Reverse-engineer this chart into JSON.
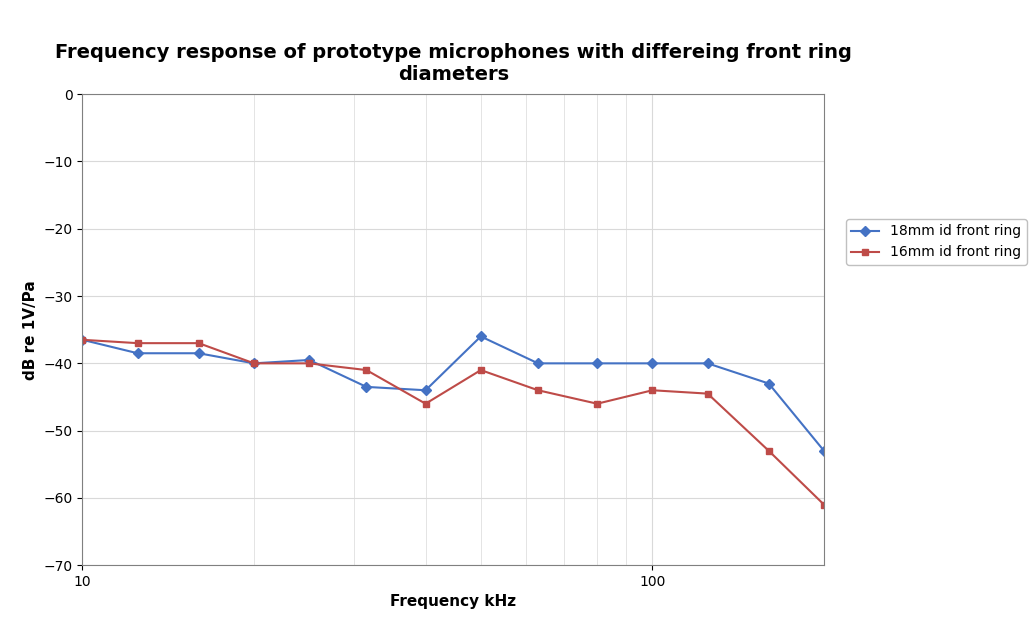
{
  "title": "Frequency response of prototype microphones with differeing front ring\ndiameters",
  "xlabel": "Frequency kHz",
  "ylabel": "dB re 1V/Pa",
  "xlim": [
    10,
    200
  ],
  "ylim": [
    -70,
    0
  ],
  "yticks": [
    0,
    -10,
    -20,
    -30,
    -40,
    -50,
    -60,
    -70
  ],
  "series": [
    {
      "label": "18mm id front ring",
      "color": "#4472C4",
      "marker": "D",
      "x": [
        10,
        12.5,
        16,
        20,
        25,
        31.5,
        40,
        50,
        63,
        80,
        100,
        125,
        160,
        200
      ],
      "y": [
        -36.5,
        -38.5,
        -38.5,
        -40.0,
        -39.5,
        -43.5,
        -44.0,
        -36.0,
        -40.0,
        -40.0,
        -40.0,
        -40.0,
        -43.0,
        -53.0
      ]
    },
    {
      "label": "16mm id front ring",
      "color": "#BE4B48",
      "marker": "s",
      "x": [
        10,
        12.5,
        16,
        20,
        25,
        31.5,
        40,
        50,
        63,
        80,
        100,
        125,
        160,
        200
      ],
      "y": [
        -36.5,
        -37.0,
        -37.0,
        -40.0,
        -40.0,
        -41.0,
        -46.0,
        -41.0,
        -44.0,
        -46.0,
        -44.0,
        -44.5,
        -53.0,
        -61.0
      ]
    }
  ],
  "bg_color": "#FFFFFF",
  "plot_bg_color": "#FFFFFF",
  "grid_color": "#D9D9D9",
  "spine_color": "#808080",
  "title_fontsize": 14,
  "axis_label_fontsize": 11,
  "tick_fontsize": 10,
  "legend_fontsize": 10
}
